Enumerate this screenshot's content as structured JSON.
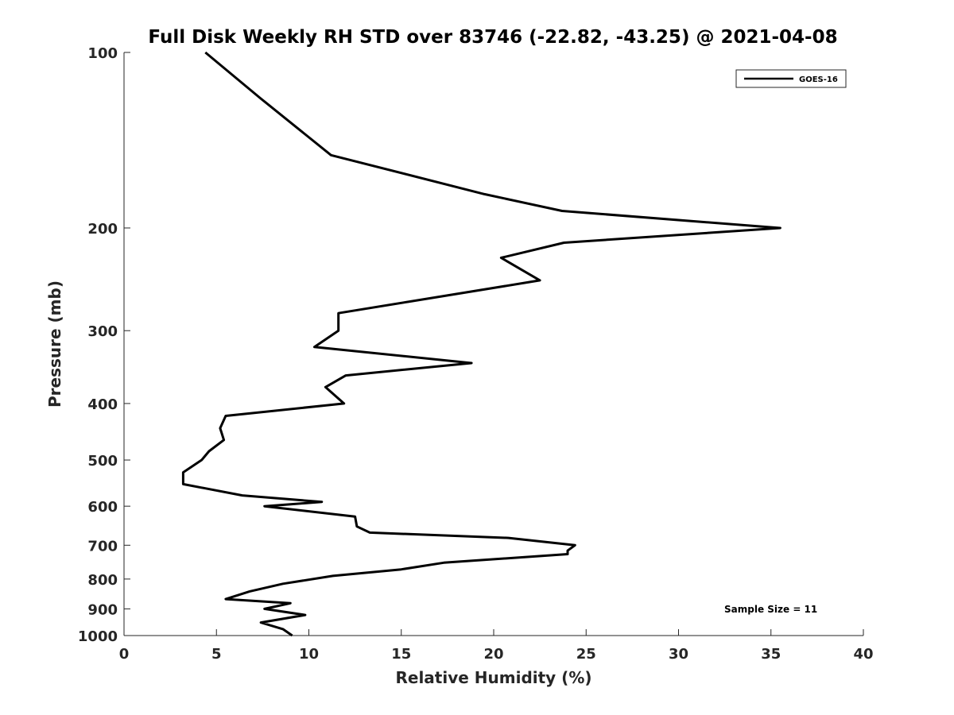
{
  "chart_data": {
    "type": "line",
    "title": "Full Disk Weekly RH STD over 83746 (-22.82, -43.25) @ 2021-04-08",
    "xlabel": "Relative Humidity (%)",
    "ylabel": "Pressure (mb)",
    "xlim": [
      0,
      40
    ],
    "ylim": [
      1000,
      100
    ],
    "yscale": "log",
    "y_reversed": true,
    "xticks": [
      0,
      5,
      10,
      15,
      20,
      25,
      30,
      35,
      40
    ],
    "yticks": [
      100,
      200,
      300,
      400,
      500,
      600,
      700,
      800,
      900,
      1000
    ],
    "grid": false,
    "legend": {
      "position": "top-right",
      "entries": [
        "GOES-16"
      ]
    },
    "annotation": "Sample Size = 11",
    "series": [
      {
        "name": "GOES-16",
        "color": "#000000",
        "points": [
          [
            4.4,
            100
          ],
          [
            7.4,
            120
          ],
          [
            11.2,
            150
          ],
          [
            19.5,
            175
          ],
          [
            23.7,
            187
          ],
          [
            35.5,
            200
          ],
          [
            23.8,
            212
          ],
          [
            20.4,
            225
          ],
          [
            22.5,
            246
          ],
          [
            11.6,
            280
          ],
          [
            11.6,
            300
          ],
          [
            10.3,
            320
          ],
          [
            18.8,
            341
          ],
          [
            12.0,
            358
          ],
          [
            10.9,
            375
          ],
          [
            11.9,
            400
          ],
          [
            5.5,
            420
          ],
          [
            5.2,
            441
          ],
          [
            5.4,
            462
          ],
          [
            4.6,
            483
          ],
          [
            4.2,
            500
          ],
          [
            3.2,
            525
          ],
          [
            3.2,
            550
          ],
          [
            6.4,
            575
          ],
          [
            10.7,
            590
          ],
          [
            7.6,
            600
          ],
          [
            12.5,
            625
          ],
          [
            12.6,
            650
          ],
          [
            13.3,
            666
          ],
          [
            20.8,
            680
          ],
          [
            24.4,
            700
          ],
          [
            24.0,
            715
          ],
          [
            24.0,
            725
          ],
          [
            17.3,
            750
          ],
          [
            15.0,
            770
          ],
          [
            11.3,
            790
          ],
          [
            8.6,
            815
          ],
          [
            6.8,
            840
          ],
          [
            5.5,
            866
          ],
          [
            9.0,
            880
          ],
          [
            7.6,
            900
          ],
          [
            9.8,
            922
          ],
          [
            7.4,
            950
          ],
          [
            8.6,
            975
          ],
          [
            9.1,
            1000
          ]
        ]
      }
    ]
  }
}
